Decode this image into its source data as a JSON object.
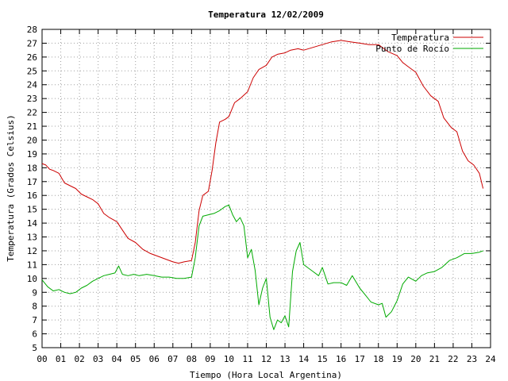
{
  "chart_data": {
    "type": "line",
    "title": "Temperatura 12/02/2009",
    "xlabel": "Tiempo (Hora Local Argentina)",
    "ylabel": "Temperatura (Grados Celsius)",
    "xlim": [
      0,
      24
    ],
    "ylim": [
      5,
      28
    ],
    "x_tick_labels": [
      "00",
      "01",
      "02",
      "03",
      "04",
      "05",
      "06",
      "07",
      "08",
      "09",
      "10",
      "11",
      "12",
      "13",
      "14",
      "15",
      "16",
      "17",
      "18",
      "19",
      "20",
      "21",
      "22",
      "23",
      "24"
    ],
    "y_ticks": [
      5,
      6,
      7,
      8,
      9,
      10,
      11,
      12,
      13,
      14,
      15,
      16,
      17,
      18,
      19,
      20,
      21,
      22,
      23,
      24,
      25,
      26,
      27,
      28
    ],
    "grid": true,
    "legend_position": "top-right",
    "series": [
      {
        "name": "Temperatura",
        "color": "#cc0000",
        "x": [
          0,
          0.2,
          0.4,
          0.6,
          0.9,
          1.2,
          1.5,
          1.8,
          2.1,
          2.4,
          2.7,
          3.0,
          3.3,
          3.6,
          4.0,
          4.3,
          4.6,
          5.0,
          5.4,
          5.8,
          6.2,
          6.6,
          7.0,
          7.3,
          7.6,
          8.0,
          8.2,
          8.4,
          8.6,
          8.9,
          9.1,
          9.3,
          9.5,
          9.8,
          10.0,
          10.3,
          10.6,
          11.0,
          11.3,
          11.6,
          12.0,
          12.3,
          12.6,
          13.0,
          13.3,
          13.7,
          14.0,
          14.5,
          15.0,
          15.5,
          16.0,
          16.5,
          17.0,
          17.5,
          18.0,
          18.5,
          19.0,
          19.3,
          19.6,
          20.0,
          20.4,
          20.8,
          21.2,
          21.5,
          21.9,
          22.2,
          22.5,
          22.8,
          23.1,
          23.4,
          23.6
        ],
        "y": [
          18.3,
          18.2,
          17.9,
          17.8,
          17.6,
          16.9,
          16.7,
          16.5,
          16.1,
          15.9,
          15.7,
          15.4,
          14.7,
          14.4,
          14.1,
          13.5,
          12.9,
          12.6,
          12.1,
          11.8,
          11.6,
          11.4,
          11.2,
          11.1,
          11.2,
          11.3,
          12.6,
          14.9,
          16.0,
          16.3,
          17.8,
          19.8,
          21.3,
          21.5,
          21.7,
          22.7,
          23.0,
          23.5,
          24.5,
          25.1,
          25.4,
          26.0,
          26.2,
          26.3,
          26.5,
          26.6,
          26.5,
          26.7,
          26.9,
          27.1,
          27.2,
          27.1,
          27.0,
          26.9,
          26.9,
          26.4,
          26.1,
          25.6,
          25.3,
          24.9,
          23.9,
          23.2,
          22.8,
          21.6,
          20.9,
          20.6,
          19.2,
          18.5,
          18.2,
          17.6,
          16.5
        ]
      },
      {
        "name": "Punto de Rocío",
        "color": "#00aa00",
        "x": [
          0,
          0.3,
          0.6,
          0.9,
          1.2,
          1.5,
          1.8,
          2.1,
          2.4,
          2.7,
          3.0,
          3.3,
          3.6,
          3.9,
          4.1,
          4.3,
          4.6,
          4.9,
          5.2,
          5.6,
          6.0,
          6.4,
          6.8,
          7.2,
          7.6,
          8.0,
          8.2,
          8.4,
          8.6,
          8.9,
          9.2,
          9.5,
          9.8,
          10.0,
          10.2,
          10.4,
          10.6,
          10.8,
          11.0,
          11.2,
          11.4,
          11.6,
          11.8,
          12.0,
          12.2,
          12.4,
          12.6,
          12.8,
          13.0,
          13.2,
          13.4,
          13.6,
          13.8,
          14.0,
          14.2,
          14.5,
          14.8,
          15.0,
          15.3,
          15.6,
          16.0,
          16.3,
          16.6,
          17.0,
          17.3,
          17.6,
          18.0,
          18.2,
          18.4,
          18.7,
          19.0,
          19.3,
          19.6,
          20.0,
          20.3,
          20.6,
          21.0,
          21.4,
          21.8,
          22.2,
          22.6,
          23.0,
          23.4,
          23.6
        ],
        "y": [
          9.9,
          9.4,
          9.1,
          9.2,
          9.0,
          8.9,
          9.0,
          9.3,
          9.5,
          9.8,
          10.0,
          10.2,
          10.3,
          10.4,
          10.9,
          10.3,
          10.2,
          10.3,
          10.2,
          10.3,
          10.2,
          10.1,
          10.1,
          10.0,
          10.0,
          10.1,
          11.5,
          13.8,
          14.5,
          14.6,
          14.7,
          14.9,
          15.2,
          15.3,
          14.6,
          14.1,
          14.4,
          13.8,
          11.5,
          12.1,
          10.6,
          8.1,
          9.3,
          10.0,
          7.2,
          6.3,
          7.0,
          6.8,
          7.3,
          6.5,
          10.5,
          12.0,
          12.6,
          11.0,
          10.8,
          10.5,
          10.2,
          10.8,
          9.6,
          9.7,
          9.7,
          9.5,
          10.2,
          9.3,
          8.8,
          8.3,
          8.1,
          8.2,
          7.2,
          7.6,
          8.4,
          9.6,
          10.1,
          9.8,
          10.2,
          10.4,
          10.5,
          10.8,
          11.3,
          11.5,
          11.8,
          11.8,
          11.9,
          12.0
        ]
      }
    ]
  }
}
